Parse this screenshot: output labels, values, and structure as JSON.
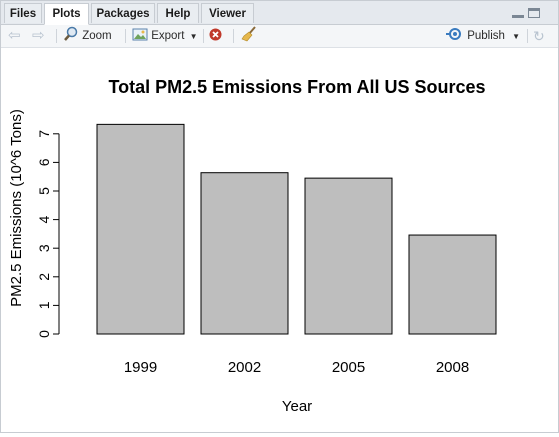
{
  "tabs": [
    {
      "label": "Files"
    },
    {
      "label": "Plots"
    },
    {
      "label": "Packages"
    },
    {
      "label": "Help"
    },
    {
      "label": "Viewer"
    }
  ],
  "active_tab": "Plots",
  "toolbar": {
    "zoom_label": "Zoom",
    "export_label": "Export",
    "publish_label": "Publish"
  },
  "colors": {
    "bar_fill": "#bebebe",
    "publish_blue": "#3a7bbf",
    "remove_red": "#c0392b"
  },
  "chart_data": {
    "type": "bar",
    "title": "Total PM2.5 Emissions From All US Sources",
    "xlabel": "Year",
    "ylabel": "PM2.5 Emissions (10^6 Tons)",
    "categories": [
      "1999",
      "2002",
      "2005",
      "2008"
    ],
    "values": [
      7.33,
      5.64,
      5.45,
      3.46
    ],
    "yticks": [
      0,
      1,
      2,
      3,
      4,
      5,
      6,
      7
    ],
    "ylim": [
      0,
      7.5
    ],
    "grid": false
  }
}
